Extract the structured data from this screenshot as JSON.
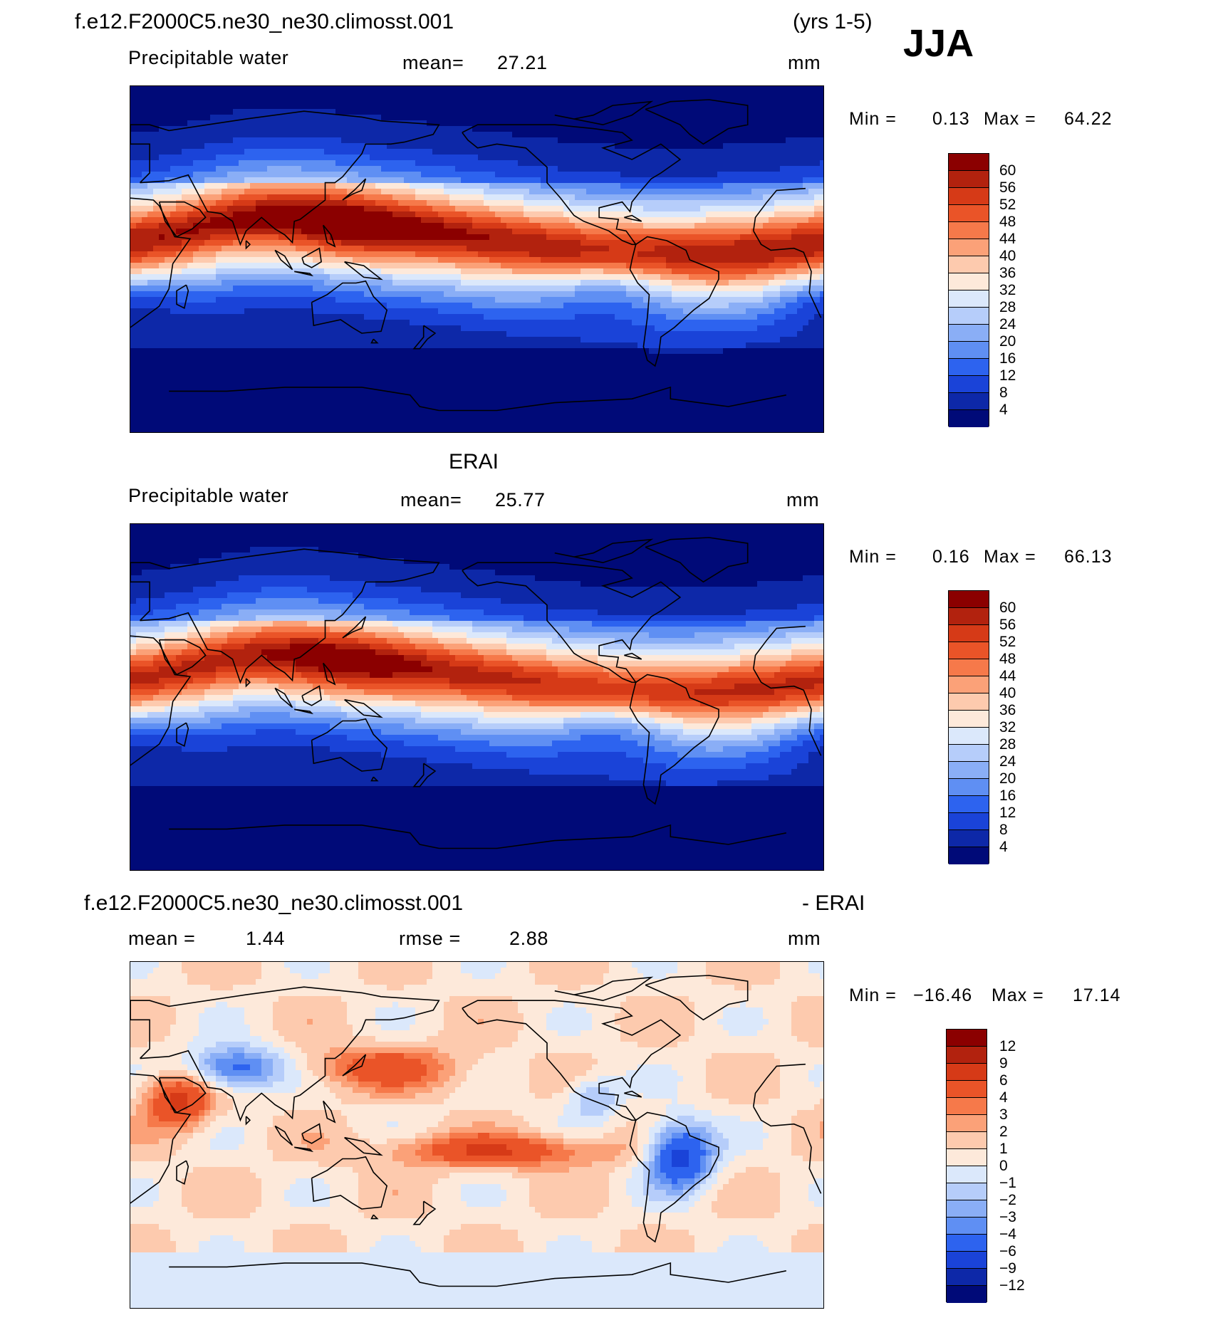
{
  "season": "JJA",
  "chart_data": [
    {
      "type": "heatmap",
      "title": "f.e12.F2000C5.ne30_ne30.climosst.001",
      "title_right": "(yrs 1-5)",
      "field": "Precipitable water",
      "mean_label": "mean=",
      "mean": "27.21",
      "units": "mm",
      "min_label": "Min =",
      "min": "0.13",
      "max_label": "Max =",
      "max": "64.22",
      "colorbar_levels": [
        "60",
        "56",
        "52",
        "48",
        "44",
        "40",
        "36",
        "32",
        "28",
        "24",
        "20",
        "16",
        "12",
        "8",
        "4"
      ],
      "colorbar_colors": [
        "#8b0000",
        "#b2220e",
        "#d63a17",
        "#ea5428",
        "#f6794a",
        "#fba178",
        "#fdcaae",
        "#fde9da",
        "#dbe8fb",
        "#b6cdfa",
        "#8aaef6",
        "#5f8ff3",
        "#2d63ef",
        "#1a43d8",
        "#0d28a8",
        "#000a78"
      ]
    },
    {
      "type": "heatmap",
      "title": "ERAI",
      "field": "Precipitable water",
      "mean_label": "mean=",
      "mean": "25.77",
      "units": "mm",
      "min_label": "Min =",
      "min": "0.16",
      "max_label": "Max =",
      "max": "66.13",
      "colorbar_levels": [
        "60",
        "56",
        "52",
        "48",
        "44",
        "40",
        "36",
        "32",
        "28",
        "24",
        "20",
        "16",
        "12",
        "8",
        "4"
      ],
      "colorbar_colors": [
        "#8b0000",
        "#b2220e",
        "#d63a17",
        "#ea5428",
        "#f6794a",
        "#fba178",
        "#fdcaae",
        "#fde9da",
        "#dbe8fb",
        "#b6cdfa",
        "#8aaef6",
        "#5f8ff3",
        "#2d63ef",
        "#1a43d8",
        "#0d28a8",
        "#000a78"
      ]
    },
    {
      "type": "heatmap",
      "title": "f.e12.F2000C5.ne30_ne30.climosst.001",
      "title_right": "- ERAI",
      "mean_label": "mean =",
      "mean": "1.44",
      "rmse_label": "rmse =",
      "rmse": "2.88",
      "units": "mm",
      "min_label": "Min =",
      "min": "−16.46",
      "max_label": "Max =",
      "max": "17.14",
      "colorbar_levels": [
        "12",
        "9",
        "6",
        "4",
        "3",
        "2",
        "1",
        "0",
        "−1",
        "−2",
        "−3",
        "−4",
        "−6",
        "−9",
        "−12"
      ],
      "colorbar_colors": [
        "#8b0000",
        "#b2220e",
        "#d63a17",
        "#ea5428",
        "#f6794a",
        "#fba178",
        "#fdcaae",
        "#fde9da",
        "#dbe8fb",
        "#b6cdfa",
        "#8aaef6",
        "#5f8ff3",
        "#2d63ef",
        "#1a43d8",
        "#0d28a8",
        "#000a78"
      ]
    }
  ]
}
